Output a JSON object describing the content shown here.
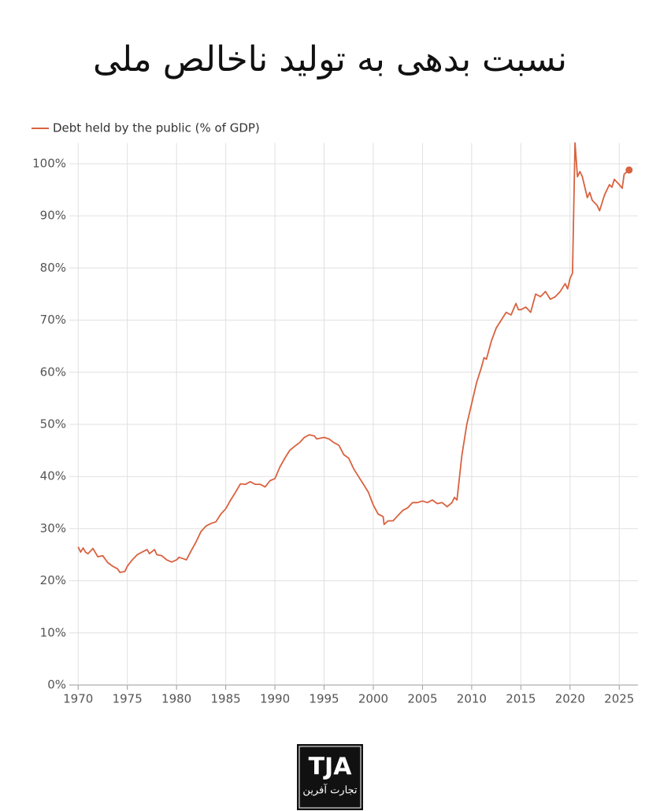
{
  "chart_data": {
    "type": "line",
    "title": "نسبت بدهی به تولید ناخالص ملی",
    "x": [
      1970,
      1970.25,
      1970.5,
      1970.75,
      1971,
      1971.5,
      1972,
      1972.5,
      1973,
      1973.5,
      1974,
      1974.25,
      1974.75,
      1975,
      1975.5,
      1976,
      1976.5,
      1977,
      1977.25,
      1977.75,
      1978,
      1978.5,
      1979,
      1979.5,
      1980,
      1980.25,
      1980.75,
      1981,
      1981.5,
      1982,
      1982.5,
      1983,
      1983.5,
      1984,
      1984.5,
      1985,
      1985.5,
      1986,
      1986.5,
      1987,
      1987.5,
      1988,
      1988.5,
      1989,
      1989.5,
      1990,
      1990.5,
      1991,
      1991.5,
      1992,
      1992.5,
      1993,
      1993.5,
      1994,
      1994.25,
      1995,
      1995.5,
      1996,
      1996.5,
      1997,
      1997.5,
      1998,
      1998.5,
      1999,
      1999.5,
      2000,
      2000.5,
      2001,
      2001.1,
      2001.5,
      2002,
      2002.5,
      2003,
      2003.5,
      2004,
      2004.5,
      2005,
      2005.5,
      2006,
      2006.5,
      2007,
      2007.5,
      2008,
      2008.25,
      2008.5,
      2009,
      2009.5,
      2010,
      2010.5,
      2011,
      2011.25,
      2011.5,
      2012,
      2012.5,
      2013,
      2013.5,
      2014,
      2014.5,
      2014.75,
      2015,
      2015.5,
      2016,
      2016.5,
      2017,
      2017.5,
      2018,
      2018.5,
      2019,
      2019.5,
      2019.75,
      2020,
      2020.25,
      2020.5,
      2020.75,
      2021,
      2021.25,
      2021.75,
      2022,
      2022.25,
      2022.75,
      2023,
      2023.5,
      2024,
      2024.25,
      2024.5,
      2025,
      2025.3,
      2025.5,
      2026
    ],
    "series": [
      {
        "name": "Debt held by the public (% of GDP)",
        "color": "#d9623f",
        "values": [
          26.5,
          25.5,
          26.3,
          25.5,
          25.2,
          26.2,
          24.6,
          24.8,
          23.5,
          22.8,
          22.3,
          21.6,
          21.8,
          22.8,
          24,
          25,
          25.5,
          26,
          25.2,
          26,
          25,
          24.8,
          24,
          23.6,
          24,
          24.5,
          24.2,
          24,
          25.8,
          27.5,
          29.5,
          30.5,
          31,
          31.3,
          32.8,
          33.8,
          35.5,
          37,
          38.6,
          38.5,
          39,
          38.5,
          38.5,
          38,
          39.2,
          39.6,
          41.8,
          43.5,
          45,
          45.8,
          46.5,
          47.5,
          48,
          47.8,
          47.2,
          47.5,
          47.2,
          46.5,
          46,
          44.2,
          43.5,
          41.5,
          40,
          38.5,
          37,
          34.5,
          32.8,
          32.3,
          30.8,
          31.5,
          31.5,
          32.5,
          33.5,
          34,
          35,
          35,
          35.3,
          35,
          35.5,
          34.8,
          35,
          34.2,
          35,
          36,
          35.5,
          44,
          50,
          54,
          58,
          61,
          62.8,
          62.5,
          66,
          68.5,
          70,
          71.5,
          71,
          73.2,
          72,
          72,
          72.5,
          71.5,
          75,
          74.5,
          75.5,
          74,
          74.5,
          75.5,
          77,
          76,
          78,
          79,
          104,
          97.5,
          98.5,
          97.5,
          93.5,
          94.5,
          93,
          92,
          91,
          94,
          96,
          95.5,
          97,
          96,
          95.3,
          98,
          98.8
        ]
      }
    ],
    "xlim": [
      1969.1,
      2026.9
    ],
    "xticks": [
      1970,
      1975,
      1980,
      1985,
      1990,
      1995,
      2000,
      2005,
      2010,
      2015,
      2020,
      2025
    ],
    "ylim": [
      0,
      104
    ],
    "yticks": [
      {
        "value": 0,
        "label": "0%"
      },
      {
        "value": 10,
        "label": "10%"
      },
      {
        "value": 20,
        "label": "20%"
      },
      {
        "value": 30,
        "label": "30%"
      },
      {
        "value": 40,
        "label": "40%"
      },
      {
        "value": 50,
        "label": "50%"
      },
      {
        "value": 60,
        "label": "60%"
      },
      {
        "value": 70,
        "label": "70%"
      },
      {
        "value": 80,
        "label": "80%"
      },
      {
        "value": 90,
        "label": "90%"
      },
      {
        "value": 100,
        "label": "100%"
      }
    ],
    "grid": true,
    "legend": "top-left"
  },
  "logo": {
    "name": "TJA",
    "subtitle": "تجارت آفرین"
  }
}
